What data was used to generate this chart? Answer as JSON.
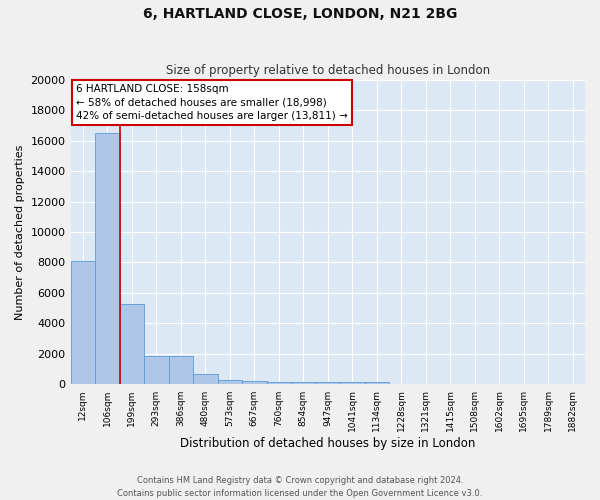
{
  "title": "6, HARTLAND CLOSE, LONDON, N21 2BG",
  "subtitle": "Size of property relative to detached houses in London",
  "xlabel": "Distribution of detached houses by size in London",
  "ylabel": "Number of detached properties",
  "categories": [
    "12sqm",
    "106sqm",
    "199sqm",
    "293sqm",
    "386sqm",
    "480sqm",
    "573sqm",
    "667sqm",
    "760sqm",
    "854sqm",
    "947sqm",
    "1041sqm",
    "1134sqm",
    "1228sqm",
    "1321sqm",
    "1415sqm",
    "1508sqm",
    "1602sqm",
    "1695sqm",
    "1789sqm",
    "1882sqm"
  ],
  "values": [
    8100,
    16500,
    5300,
    1850,
    1850,
    700,
    300,
    220,
    190,
    170,
    160,
    150,
    130,
    0,
    0,
    0,
    0,
    0,
    0,
    0,
    0
  ],
  "bar_color": "#aec6e8",
  "bar_edge_color": "#5b9bd5",
  "bg_color": "#dde8f5",
  "fig_color": "#f0f0f0",
  "grid_color": "#ffffff",
  "vline_x": 1.5,
  "vline_color": "#cc0000",
  "annotation_text": "6 HARTLAND CLOSE: 158sqm\n← 58% of detached houses are smaller (18,998)\n42% of semi-detached houses are larger (13,811) →",
  "annotation_box_color": "#ffffff",
  "annotation_box_edge": "#cc0000",
  "ylim": [
    0,
    20000
  ],
  "yticks": [
    0,
    2000,
    4000,
    6000,
    8000,
    10000,
    12000,
    14000,
    16000,
    18000,
    20000
  ],
  "footer_line1": "Contains HM Land Registry data © Crown copyright and database right 2024.",
  "footer_line2": "Contains public sector information licensed under the Open Government Licence v3.0."
}
